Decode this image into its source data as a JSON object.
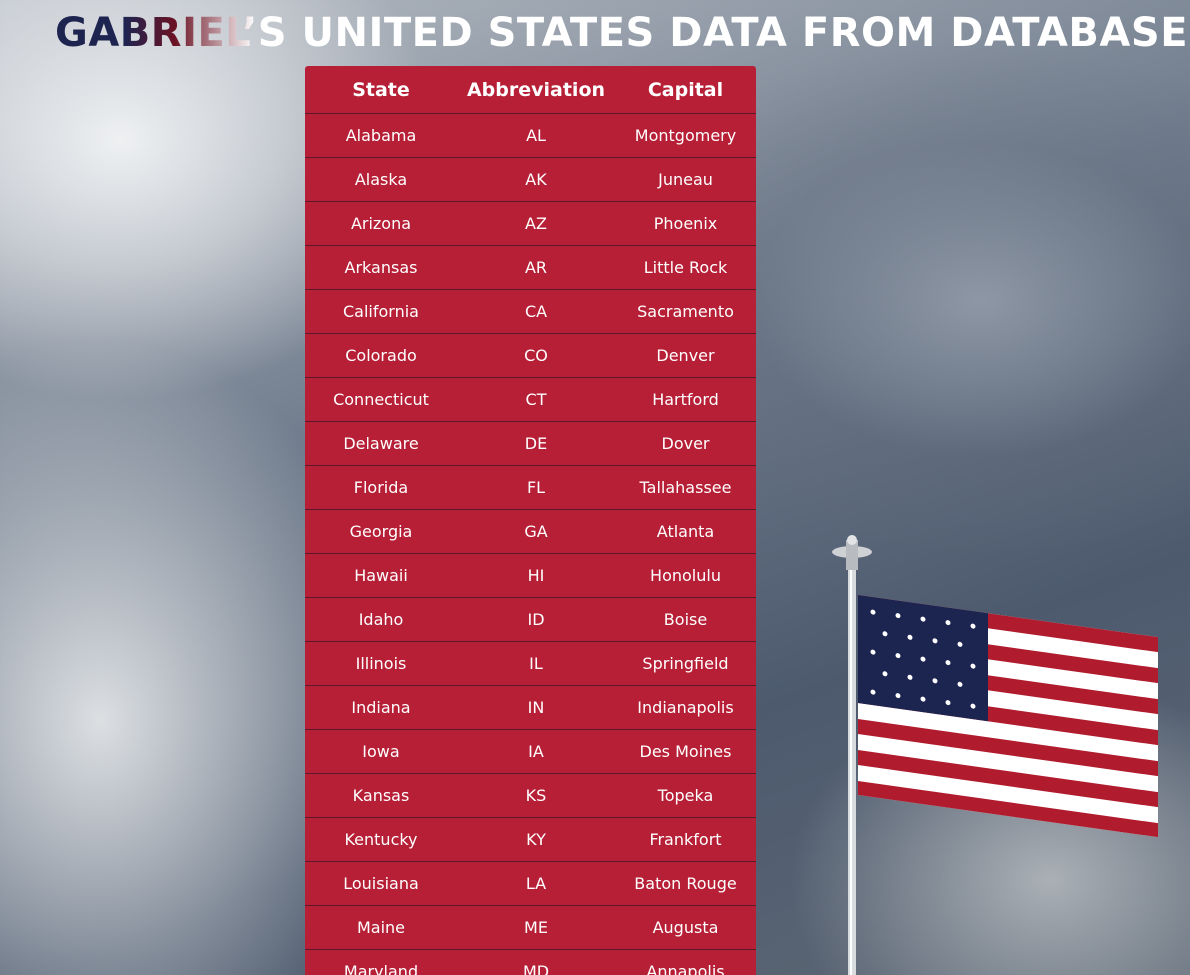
{
  "header": {
    "title": "GABRIEL’S UNITED STATES DATA FROM DATABASE"
  },
  "table": {
    "columns": [
      "State",
      "Abbreviation",
      "Capital"
    ],
    "rows": [
      [
        "Alabama",
        "AL",
        "Montgomery"
      ],
      [
        "Alaska",
        "AK",
        "Juneau"
      ],
      [
        "Arizona",
        "AZ",
        "Phoenix"
      ],
      [
        "Arkansas",
        "AR",
        "Little Rock"
      ],
      [
        "California",
        "CA",
        "Sacramento"
      ],
      [
        "Colorado",
        "CO",
        "Denver"
      ],
      [
        "Connecticut",
        "CT",
        "Hartford"
      ],
      [
        "Delaware",
        "DE",
        "Dover"
      ],
      [
        "Florida",
        "FL",
        "Tallahassee"
      ],
      [
        "Georgia",
        "GA",
        "Atlanta"
      ],
      [
        "Hawaii",
        "HI",
        "Honolulu"
      ],
      [
        "Idaho",
        "ID",
        "Boise"
      ],
      [
        "Illinois",
        "IL",
        "Springfield"
      ],
      [
        "Indiana",
        "IN",
        "Indianapolis"
      ],
      [
        "Iowa",
        "IA",
        "Des Moines"
      ],
      [
        "Kansas",
        "KS",
        "Topeka"
      ],
      [
        "Kentucky",
        "KY",
        "Frankfort"
      ],
      [
        "Louisiana",
        "LA",
        "Baton Rouge"
      ],
      [
        "Maine",
        "ME",
        "Augusta"
      ],
      [
        "Maryland",
        "MD",
        "Annapolis"
      ]
    ]
  }
}
